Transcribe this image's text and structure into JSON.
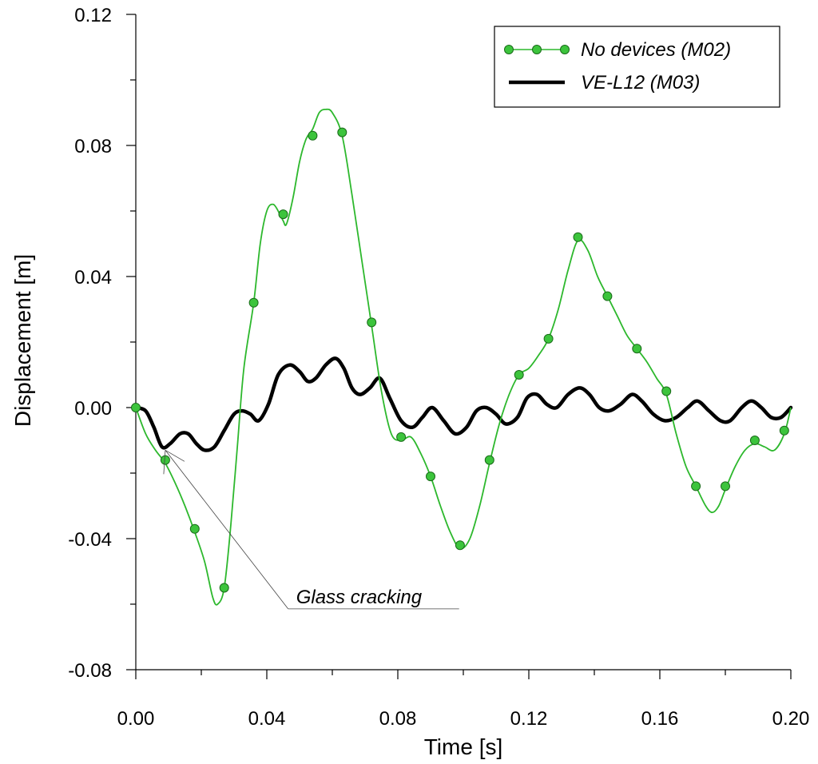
{
  "chart_data": {
    "type": "line",
    "title": "",
    "xlabel": "Time [s]",
    "ylabel": "Displacement [m]",
    "xlim": [
      0.0,
      0.2
    ],
    "ylim": [
      -0.08,
      0.12
    ],
    "x_ticks": [
      "0.00",
      "0.04",
      "0.08",
      "0.12",
      "0.16",
      "0.20"
    ],
    "x_tick_values": [
      0.0,
      0.04,
      0.08,
      0.12,
      0.16,
      0.2
    ],
    "y_ticks": [
      "-0.08",
      "-0.04",
      "0.00",
      "0.04",
      "0.08",
      "0.12"
    ],
    "y_tick_values": [
      -0.08,
      -0.04,
      0.0,
      0.04,
      0.08,
      0.12
    ],
    "grid": false,
    "legend_position": "top-right",
    "series": [
      {
        "name": "No devices (M02)",
        "color": "#2db82d",
        "marker_color": "#3cc43c",
        "x": [
          0,
          0.003,
          0.006,
          0.009,
          0.012,
          0.015,
          0.018,
          0.021,
          0.0235,
          0.025,
          0.027,
          0.029,
          0.031,
          0.033,
          0.036,
          0.038,
          0.04,
          0.042,
          0.044,
          0.045,
          0.046,
          0.048,
          0.05,
          0.052,
          0.054,
          0.056,
          0.058,
          0.06,
          0.063,
          0.066,
          0.069,
          0.072,
          0.075,
          0.078,
          0.081,
          0.084,
          0.087,
          0.09,
          0.093,
          0.096,
          0.099,
          0.102,
          0.105,
          0.108,
          0.111,
          0.114,
          0.117,
          0.12,
          0.123,
          0.126,
          0.129,
          0.132,
          0.135,
          0.138,
          0.141,
          0.144,
          0.147,
          0.15,
          0.153,
          0.156,
          0.159,
          0.162,
          0.165,
          0.168,
          0.171,
          0.174,
          0.176,
          0.178,
          0.18,
          0.183,
          0.186,
          0.189,
          0.192,
          0.195,
          0.198,
          0.2
        ],
        "values": [
          0,
          -0.008,
          -0.013,
          -0.017,
          -0.023,
          -0.03,
          -0.038,
          -0.047,
          -0.058,
          -0.06,
          -0.055,
          -0.036,
          -0.012,
          0.012,
          0.032,
          0.05,
          0.06,
          0.062,
          0.059,
          0.057,
          0.056,
          0.064,
          0.075,
          0.082,
          0.085,
          0.09,
          0.091,
          0.09,
          0.083,
          0.065,
          0.045,
          0.025,
          0.005,
          -0.008,
          -0.01,
          -0.009,
          -0.014,
          -0.021,
          -0.03,
          -0.038,
          -0.043,
          -0.04,
          -0.03,
          -0.017,
          -0.005,
          0.004,
          0.01,
          0.012,
          0.016,
          0.021,
          0.03,
          0.042,
          0.051,
          0.048,
          0.04,
          0.034,
          0.028,
          0.022,
          0.018,
          0.014,
          0.009,
          0.004,
          -0.008,
          -0.018,
          -0.024,
          -0.03,
          -0.032,
          -0.03,
          -0.025,
          -0.018,
          -0.013,
          -0.011,
          -0.012,
          -0.013,
          -0.008,
          0
        ],
        "marker_x": [
          0,
          0.009,
          0.018,
          0.027,
          0.036,
          0.045,
          0.054,
          0.063,
          0.072,
          0.081,
          0.09,
          0.099,
          0.108,
          0.117,
          0.126,
          0.135,
          0.144,
          0.153,
          0.162,
          0.171,
          0.18,
          0.189,
          0.198
        ],
        "marker_values": [
          0,
          -0.016,
          -0.037,
          -0.055,
          0.032,
          0.059,
          0.083,
          0.084,
          0.026,
          -0.009,
          -0.021,
          -0.042,
          -0.016,
          0.01,
          0.021,
          0.052,
          0.034,
          0.018,
          0.005,
          -0.024,
          -0.024,
          -0.01,
          -0.007
        ]
      },
      {
        "name": "VE-L12 (M03)",
        "color": "#000000",
        "x": [
          0,
          0.003,
          0.0055,
          0.008,
          0.0105,
          0.0135,
          0.016,
          0.0185,
          0.021,
          0.024,
          0.027,
          0.03,
          0.0325,
          0.035,
          0.0375,
          0.0405,
          0.0435,
          0.047,
          0.05,
          0.0525,
          0.055,
          0.058,
          0.061,
          0.0635,
          0.066,
          0.0685,
          0.0715,
          0.0745,
          0.0775,
          0.081,
          0.0845,
          0.0875,
          0.0905,
          0.094,
          0.0975,
          0.101,
          0.104,
          0.107,
          0.11,
          0.113,
          0.1165,
          0.1195,
          0.1225,
          0.1255,
          0.1285,
          0.132,
          0.1355,
          0.1385,
          0.1415,
          0.1445,
          0.148,
          0.1515,
          0.1545,
          0.158,
          0.1615,
          0.165,
          0.1685,
          0.1715,
          0.175,
          0.1785,
          0.1815,
          0.185,
          0.188,
          0.191,
          0.194,
          0.197,
          0.2
        ],
        "values": [
          0,
          -0.001,
          -0.006,
          -0.012,
          -0.011,
          -0.008,
          -0.008,
          -0.011,
          -0.013,
          -0.012,
          -0.007,
          -0.002,
          -0.001,
          -0.002,
          -0.004,
          0.001,
          0.01,
          0.013,
          0.011,
          0.008,
          0.009,
          0.013,
          0.015,
          0.012,
          0.006,
          0.004,
          0.006,
          0.009,
          0.003,
          -0.004,
          -0.006,
          -0.003,
          0.0,
          -0.004,
          -0.008,
          -0.006,
          -0.001,
          0.0,
          -0.002,
          -0.005,
          -0.003,
          0.003,
          0.004,
          0.001,
          0.0,
          0.004,
          0.006,
          0.004,
          0.0,
          -0.001,
          0.001,
          0.004,
          0.002,
          -0.002,
          -0.004,
          -0.003,
          0.0,
          0.002,
          -0.001,
          -0.004,
          -0.004,
          0.0,
          0.002,
          0.0,
          -0.003,
          -0.003,
          0.0
        ]
      }
    ],
    "annotations": [
      {
        "text": "Glass cracking",
        "target_x": 0.009,
        "target_y": -0.013,
        "label_x": 0.047,
        "label_y": -0.059
      }
    ]
  }
}
